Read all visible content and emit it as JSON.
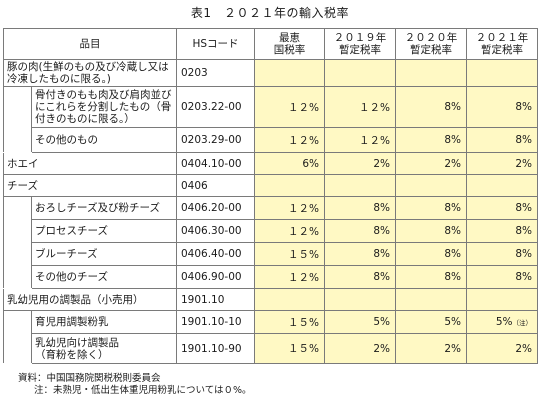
{
  "title": "表1　２０２１年の輸入税率",
  "headers": {
    "item": "品目",
    "hs": "HSコード",
    "mfn": "最恵\n国税率",
    "y2019": "２０１９年\n暫定税率",
    "y2020": "２０２０年\n暫定税率",
    "y2021": "２０２１年\n暫定税率"
  },
  "rows": {
    "pork": {
      "item": "豚の肉(生鮮のもの及び冷蔵し又は冷凍したものに限る。)",
      "hs": "0203"
    },
    "pork_cuts": {
      "item": "骨付きのもも肉及び肩肉並びにこれらを分割したもの（骨付きのものに限る。）",
      "hs": "0203.22-00",
      "mfn": "１２%",
      "y2019": "１２%",
      "y2020": "8%",
      "y2021": "8%"
    },
    "pork_other": {
      "item": "その他のもの",
      "hs": "0203.29-00",
      "mfn": "１２%",
      "y2019": "１２%",
      "y2020": "8%",
      "y2021": "8%"
    },
    "whey": {
      "item": "ホエイ",
      "hs": "0404.10-00",
      "mfn": "6%",
      "y2019": "2%",
      "y2020": "2%",
      "y2021": "2%"
    },
    "cheese": {
      "item": "チーズ",
      "hs": "0406"
    },
    "grated": {
      "item": "おろしチーズ及び粉チーズ",
      "hs": "0406.20-00",
      "mfn": "１２%",
      "y2019": "8%",
      "y2020": "8%",
      "y2021": "8%"
    },
    "process": {
      "item": "プロセスチーズ",
      "hs": "0406.30-00",
      "mfn": "１２%",
      "y2019": "8%",
      "y2020": "8%",
      "y2021": "8%"
    },
    "blue": {
      "item": "ブルーチーズ",
      "hs": "0406.40-00",
      "mfn": "１５%",
      "y2019": "8%",
      "y2020": "8%",
      "y2021": "8%"
    },
    "cheese_other": {
      "item": "その他のチーズ",
      "hs": "0406.90-00",
      "mfn": "１２%",
      "y2019": "8%",
      "y2020": "8%",
      "y2021": "8%"
    },
    "infant": {
      "item": "乳幼児用の調製品（小売用）",
      "hs": "1901.10"
    },
    "infant_milk": {
      "item": "育児用調製粉乳",
      "hs": "1901.10-10",
      "mfn": "１５%",
      "y2019": "5%",
      "y2020": "5%",
      "y2021": "5%",
      "note_mark": "（注）"
    },
    "infant_food": {
      "item": "乳幼児向け調製品\n（育粉を除く）",
      "hs": "1901.10-90",
      "mfn": "１５%",
      "y2019": "2%",
      "y2020": "2%",
      "y2021": "2%"
    }
  },
  "footer": {
    "source": "資料：中国国務院関税税則委員会",
    "note": "注：未熟児・低出生体重児用粉乳については０%。"
  },
  "colors": {
    "highlight": "#fff9c4",
    "border": "#7a7a7a"
  }
}
